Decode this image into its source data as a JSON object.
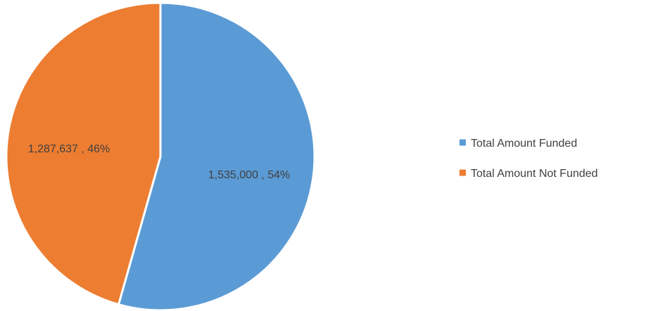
{
  "chart_data": {
    "type": "pie",
    "title": "",
    "start_angle_deg": 0,
    "direction": "clockwise",
    "legend_position": "right",
    "slices": [
      {
        "name": "Total Amount Funded",
        "value": 1535000,
        "percent": 54,
        "label": "1,535,000 , 54%",
        "color": "#5B9BD5"
      },
      {
        "name": "Total Amount Not Funded",
        "value": 1287637,
        "percent": 46,
        "label": "1,287,637 , 46%",
        "color": "#ED7D31"
      }
    ]
  }
}
